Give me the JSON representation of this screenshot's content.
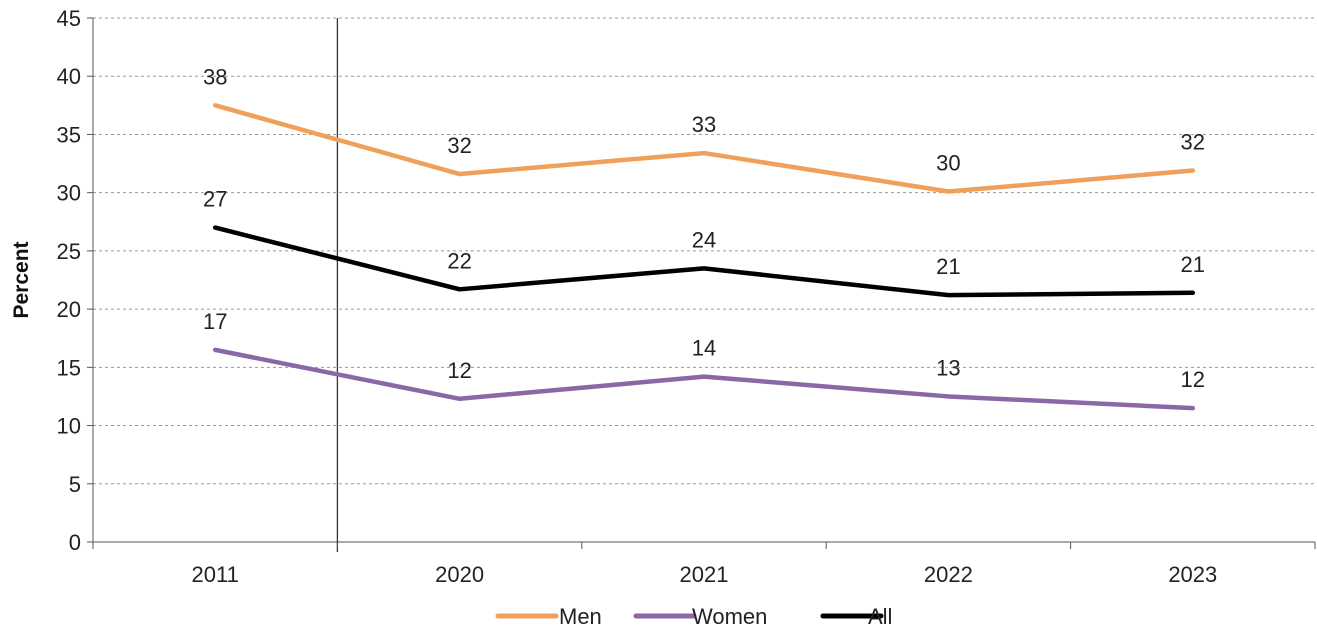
{
  "chart_data": {
    "type": "line",
    "categories": [
      "2011",
      "2020",
      "2021",
      "2022",
      "2023"
    ],
    "series": [
      {
        "name": "Men",
        "color": "#f0a05a",
        "values": [
          37.5,
          31.6,
          33.4,
          30.1,
          31.9
        ],
        "labels": [
          "38",
          "32",
          "33",
          "30",
          "32"
        ]
      },
      {
        "name": "Women",
        "color": "#8a68a6",
        "values": [
          16.5,
          12.3,
          14.2,
          12.5,
          11.5
        ],
        "labels": [
          "17",
          "12",
          "14",
          "13",
          "12"
        ]
      },
      {
        "name": "All",
        "color": "#000000",
        "values": [
          27.0,
          21.7,
          23.5,
          21.2,
          21.4
        ],
        "labels": [
          "27",
          "22",
          "24",
          "21",
          "21"
        ]
      }
    ],
    "xlabel": "",
    "ylabel": "Percent",
    "ylim": [
      0,
      45
    ],
    "yticks": [
      0,
      5,
      10,
      15,
      20,
      25,
      30,
      35,
      40,
      45
    ],
    "grid": true,
    "axis_break_after": "2011",
    "legend": "bottom-center"
  }
}
